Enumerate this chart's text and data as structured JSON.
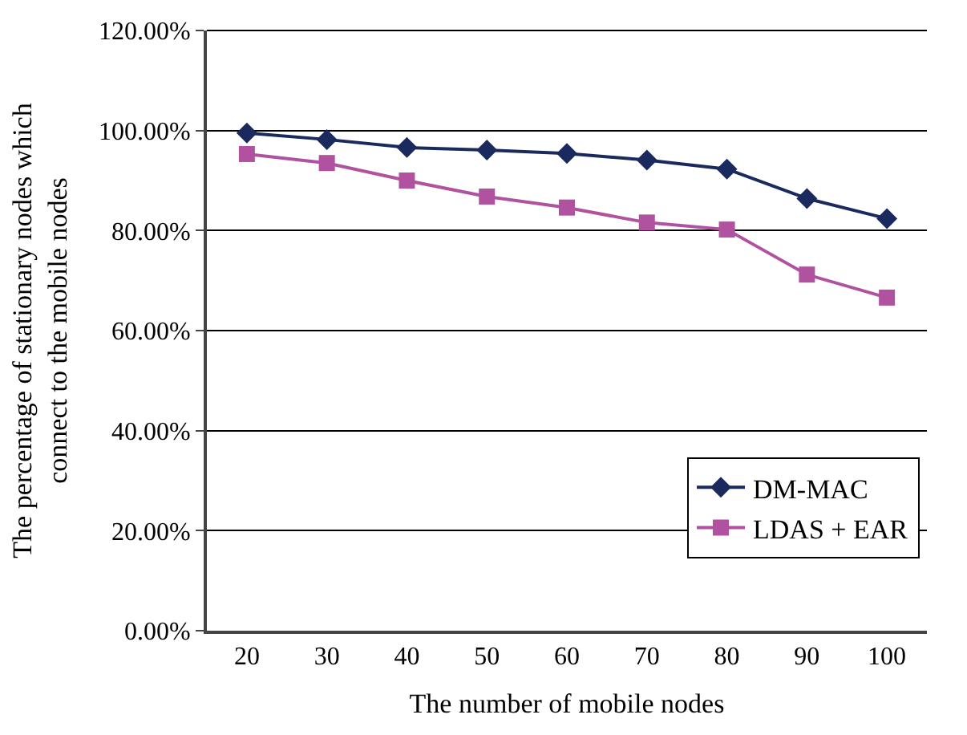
{
  "chart_data": {
    "type": "line",
    "xlabel": "The number of mobile nodes",
    "ylabel": "The percentage of stationary nodes which\nconnect to the mobile nodes",
    "categories": [
      "20",
      "30",
      "40",
      "50",
      "60",
      "70",
      "80",
      "90",
      "100"
    ],
    "series": [
      {
        "name": "DM-MAC",
        "color": "#1a2a5e",
        "marker": "diamond",
        "values": [
          99.5,
          98.2,
          96.6,
          96.1,
          95.4,
          94.1,
          92.3,
          86.4,
          82.4
        ]
      },
      {
        "name": "LDAS + EAR",
        "color": "#b0529f",
        "marker": "square",
        "values": [
          95.3,
          93.5,
          90.0,
          86.8,
          84.6,
          81.6,
          80.2,
          71.2,
          66.6
        ]
      }
    ],
    "ylim": [
      0,
      120
    ],
    "yticks": [
      {
        "value": 0,
        "label": "0.00%"
      },
      {
        "value": 20,
        "label": "20.00%"
      },
      {
        "value": 40,
        "label": "40.00%"
      },
      {
        "value": 60,
        "label": "60.00%"
      },
      {
        "value": 80,
        "label": "80.00%"
      },
      {
        "value": 100,
        "label": "100.00%"
      },
      {
        "value": 120,
        "label": "120.00%"
      }
    ],
    "grid": "y",
    "legend": "bottom right",
    "line_style": "solid"
  }
}
